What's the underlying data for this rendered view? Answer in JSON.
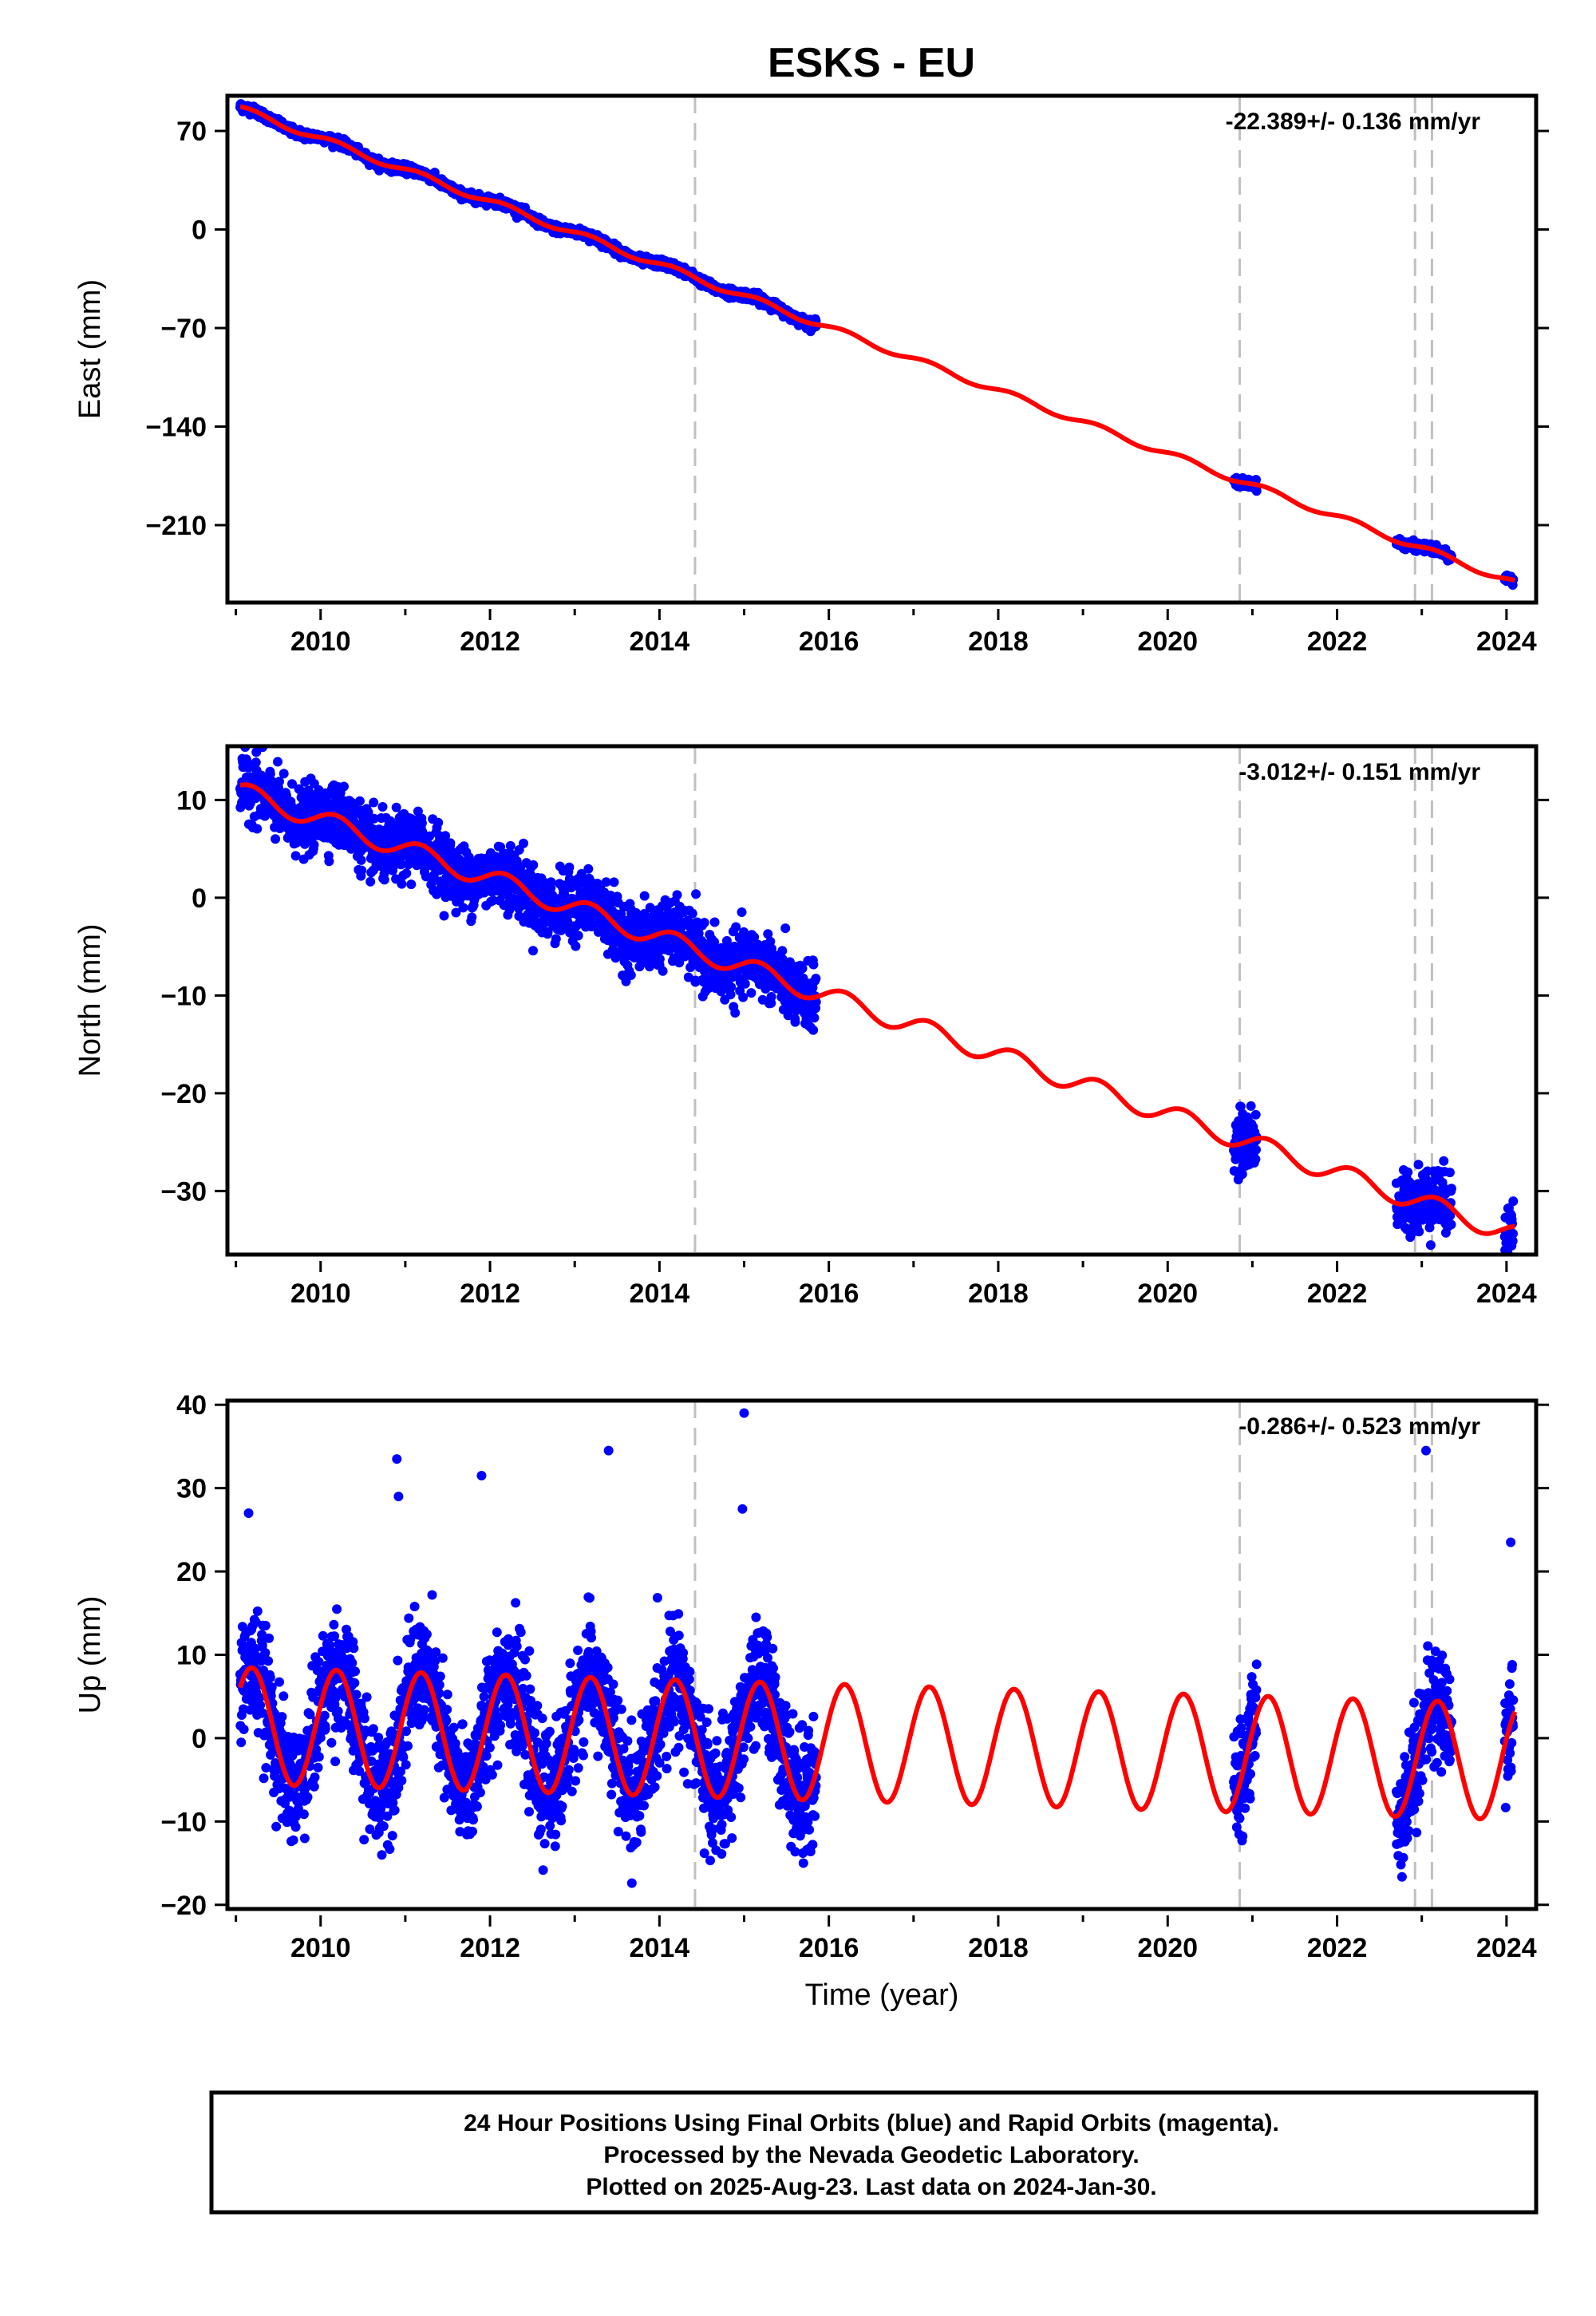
{
  "title": "ESKS - EU",
  "footer": {
    "lines": [
      "24 Hour Positions Using Final Orbits (blue) and Rapid Orbits (magenta).",
      "Processed by the Nevada Geodetic Laboratory.",
      "Plotted on 2025-Aug-23. Last data on 2024-Jan-30."
    ]
  },
  "colors": {
    "data": "#0000ff",
    "model": "#ff0000",
    "break_line": "#c0c0c0",
    "frame": "#000000"
  },
  "chart_data": [
    {
      "type": "scatter",
      "panel": "east",
      "ylabel": "East (mm)",
      "xlabel": "",
      "rate_text": "-22.389+/- 0.136 mm/yr",
      "xlim": [
        2008.9,
        2024.35
      ],
      "ylim": [
        -265,
        95
      ],
      "xticks": [
        "2010",
        "2012",
        "2014",
        "2016",
        "2018",
        "2020",
        "2022",
        "2024"
      ],
      "yticks": [
        "70",
        "0",
        "−70",
        "−140",
        "−210"
      ],
      "ytick_values": [
        70,
        0,
        -70,
        -140,
        -210
      ],
      "breaks": [
        2014.42,
        2020.85,
        2022.92,
        2023.12
      ],
      "data_segments": [
        [
          2009.05,
          2015.85
        ],
        [
          2020.78,
          2021.05
        ],
        [
          2022.7,
          2023.35
        ],
        [
          2023.98,
          2024.08
        ]
      ],
      "series": [
        {
          "name": "",
          "kind": "model_trend",
          "rate": -22.389,
          "y_at_2009": 87,
          "seasonal_amplitude": 2.2,
          "noise": 1.5
        }
      ]
    },
    {
      "type": "scatter",
      "panel": "north",
      "ylabel": "North (mm)",
      "xlabel": "",
      "rate_text": "-3.012+/- 0.151 mm/yr",
      "xlim": [
        2008.9,
        2024.35
      ],
      "ylim": [
        -36.5,
        15.5
      ],
      "xticks": [
        "2010",
        "2012",
        "2014",
        "2016",
        "2018",
        "2020",
        "2022",
        "2024"
      ],
      "yticks": [
        "10",
        "0",
        "−10",
        "−20",
        "−30"
      ],
      "ytick_values": [
        10,
        0,
        -10,
        -20,
        -30
      ],
      "breaks": [
        2014.42,
        2020.85,
        2022.92,
        2023.12
      ],
      "data_segments": [
        [
          2009.05,
          2015.85
        ],
        [
          2020.78,
          2021.05
        ],
        [
          2022.7,
          2023.35
        ],
        [
          2023.98,
          2024.08
        ]
      ],
      "series": [
        {
          "name": "",
          "kind": "model_trend",
          "rate": -3.012,
          "y_at_2009": 11,
          "seasonal_amplitude": 1.0,
          "noise": 1.6
        }
      ]
    },
    {
      "type": "scatter",
      "panel": "up",
      "ylabel": "Up (mm)",
      "xlabel": "Time (year)",
      "rate_text": "-0.286+/- 0.523 mm/yr",
      "xlim": [
        2008.9,
        2024.35
      ],
      "ylim": [
        -20.5,
        40.5
      ],
      "xticks": [
        "2010",
        "2012",
        "2014",
        "2016",
        "2018",
        "2020",
        "2022",
        "2024"
      ],
      "yticks": [
        "40",
        "30",
        "20",
        "10",
        "0",
        "−10",
        "−20"
      ],
      "ytick_values": [
        40,
        30,
        20,
        10,
        0,
        -10,
        -20
      ],
      "breaks": [
        2014.42,
        2020.85,
        2022.92,
        2023.12
      ],
      "data_segments": [
        [
          2009.05,
          2015.85
        ],
        [
          2020.78,
          2021.05
        ],
        [
          2022.7,
          2023.35
        ],
        [
          2023.98,
          2024.08
        ]
      ],
      "series": [
        {
          "name": "",
          "kind": "model_trend",
          "rate": -0.286,
          "y_at_2009": 1.5,
          "seasonal_amplitude": 7.0,
          "noise": 3.5
        }
      ],
      "outliers": [
        [
          2009.15,
          27
        ],
        [
          2010.9,
          33.5
        ],
        [
          2010.92,
          29
        ],
        [
          2011.9,
          31.5
        ],
        [
          2013.4,
          34.5
        ],
        [
          2015.0,
          39
        ],
        [
          2014.98,
          27.5
        ],
        [
          2023.05,
          34.5
        ],
        [
          2024.05,
          23.5
        ]
      ]
    }
  ]
}
